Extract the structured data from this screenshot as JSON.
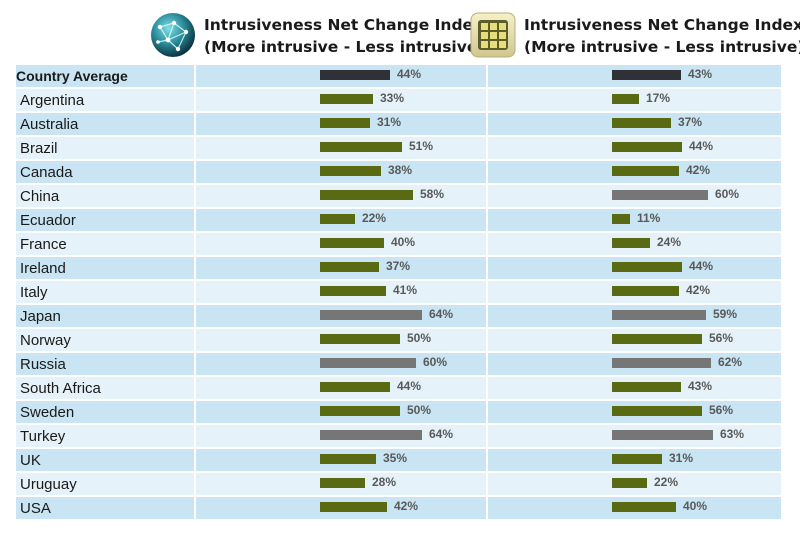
{
  "headers": [
    {
      "line1": "Intrusiveness Net Change Index",
      "line2": "(More intrusive - Less intrusive)",
      "icon": "globe-network-icon"
    },
    {
      "line1": "Intrusiveness Net Change Index",
      "line2": "(More intrusive - Less intrusive)",
      "icon": "grid-tile-icon"
    }
  ],
  "colors": {
    "average": "#2f3136",
    "normal": "#5a6a12",
    "high": "#767676"
  },
  "chart_data": {
    "type": "bar",
    "orientation": "horizontal",
    "categories": [
      "Country Average",
      "Argentina",
      "Australia",
      "Brazil",
      "Canada",
      "China",
      "Ecuador",
      "France",
      "Ireland",
      "Italy",
      "Japan",
      "Norway",
      "Russia",
      "South Africa",
      "Sweden",
      "Turkey",
      "UK",
      "Uruguay",
      "USA"
    ],
    "series": [
      {
        "values": [
          44,
          33,
          31,
          51,
          38,
          58,
          22,
          40,
          37,
          41,
          64,
          50,
          60,
          44,
          50,
          64,
          35,
          28,
          42
        ],
        "labels": [
          "44%",
          "33%",
          "31%",
          "51%",
          "38%",
          "58%",
          "22%",
          "40%",
          "37%",
          "41%",
          "64%",
          "50%",
          "60%",
          "44%",
          "50%",
          "64%",
          "35%",
          "28%",
          "42%"
        ]
      },
      {
        "values": [
          43,
          17,
          37,
          44,
          42,
          60,
          11,
          24,
          44,
          42,
          59,
          56,
          62,
          43,
          56,
          63,
          31,
          22,
          40
        ],
        "labels": [
          "43%",
          "17%",
          "37%",
          "44%",
          "42%",
          "60%",
          "11%",
          "24%",
          "44%",
          "42%",
          "59%",
          "56%",
          "62%",
          "43%",
          "56%",
          "63%",
          "31%",
          "22%",
          "40%"
        ]
      }
    ],
    "xlim": [
      0,
      100
    ],
    "grid": false,
    "legend": "none"
  }
}
